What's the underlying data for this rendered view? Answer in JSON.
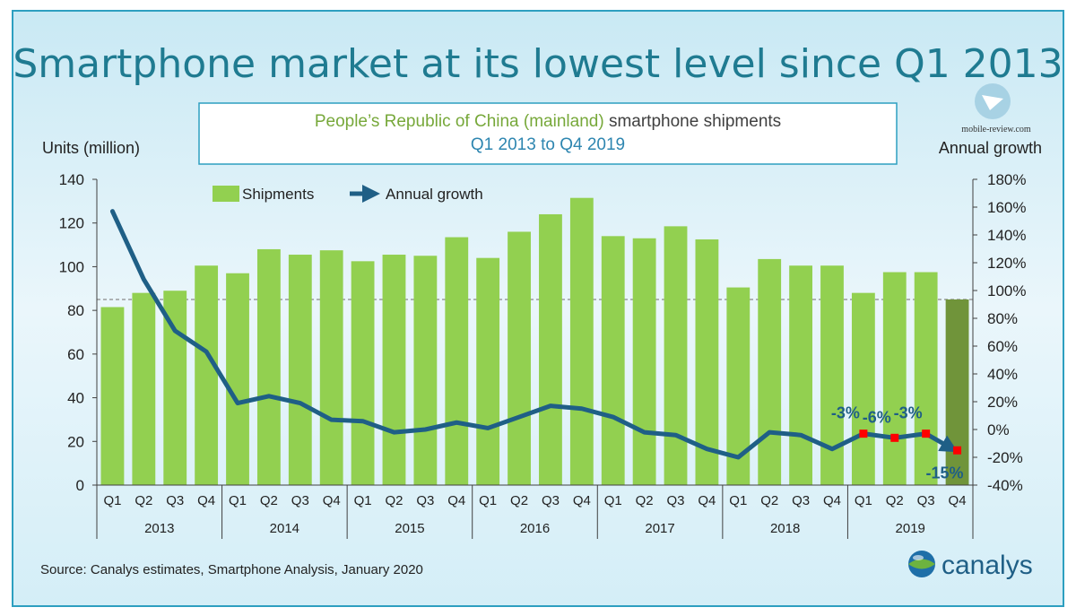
{
  "page_title": "Smartphone market at its lowest level since Q1 2013",
  "watermark": "mobile-review.com",
  "brand": "canalys",
  "source_text": "Source: Canalys estimates, Smartphone Analysis, January 2020",
  "colors": {
    "title": "#1f7b91",
    "bar": "#92d050",
    "bar_highlight": "#70943a",
    "line": "#1f5f86",
    "marker": "#ff0000",
    "label_blue": "#1f5f86",
    "subtitle_green": "#77a83a",
    "subtitle_blue": "#2e86b0",
    "frame": "#2d9fc0"
  },
  "chart_data": {
    "type": "bar",
    "title_green": "People’s Republic of China (mainland)",
    "title_dark": " smartphone shipments",
    "subtitle": "Q1 2013 to Q4 2019",
    "ylabel": "Units (million)",
    "y2label": "Annual growth",
    "ylim": [
      0,
      140
    ],
    "yticks": [
      0,
      20,
      40,
      60,
      80,
      100,
      120,
      140
    ],
    "y2lim": [
      -40,
      180
    ],
    "y2ticks": [
      "-40%",
      "-20%",
      "0%",
      "20%",
      "40%",
      "60%",
      "80%",
      "100%",
      "120%",
      "140%",
      "160%",
      "180%"
    ],
    "y2tick_values": [
      -40,
      -20,
      0,
      20,
      40,
      60,
      80,
      100,
      120,
      140,
      160,
      180
    ],
    "categories": [
      "Q1",
      "Q2",
      "Q3",
      "Q4",
      "Q1",
      "Q2",
      "Q3",
      "Q4",
      "Q1",
      "Q2",
      "Q3",
      "Q4",
      "Q1",
      "Q2",
      "Q3",
      "Q4",
      "Q1",
      "Q2",
      "Q3",
      "Q4",
      "Q1",
      "Q2",
      "Q3",
      "Q4",
      "Q1",
      "Q2",
      "Q3",
      "Q4"
    ],
    "years": [
      "2013",
      "2014",
      "2015",
      "2016",
      "2017",
      "2018",
      "2019"
    ],
    "legend": {
      "shipments": "Shipments",
      "growth": "Annual growth"
    },
    "reference_line": 85,
    "series": [
      {
        "name": "Shipments",
        "axis": "left",
        "values": [
          81.5,
          88,
          89,
          100.5,
          97,
          108,
          105.5,
          107.5,
          102.5,
          105.5,
          105,
          113.5,
          104,
          116,
          124,
          131.5,
          114,
          113,
          118.5,
          112.5,
          90.5,
          103.5,
          100.5,
          100.5,
          88,
          97.5,
          97.5,
          85
        ]
      },
      {
        "name": "Annual growth",
        "axis": "right",
        "values": [
          157,
          108,
          71,
          56,
          19,
          24,
          19,
          7,
          6,
          -2,
          0,
          5,
          1,
          9,
          17,
          15,
          9,
          -2,
          -4,
          -14,
          -20,
          -2,
          -4,
          -14,
          -3,
          -6,
          -3,
          -15
        ]
      }
    ],
    "annotations": [
      {
        "index": 24,
        "text": "-3%"
      },
      {
        "index": 25,
        "text": "-6%"
      },
      {
        "index": 26,
        "text": "-3%"
      },
      {
        "index": 27,
        "text": "-15%"
      }
    ],
    "highlight_index": 27
  }
}
